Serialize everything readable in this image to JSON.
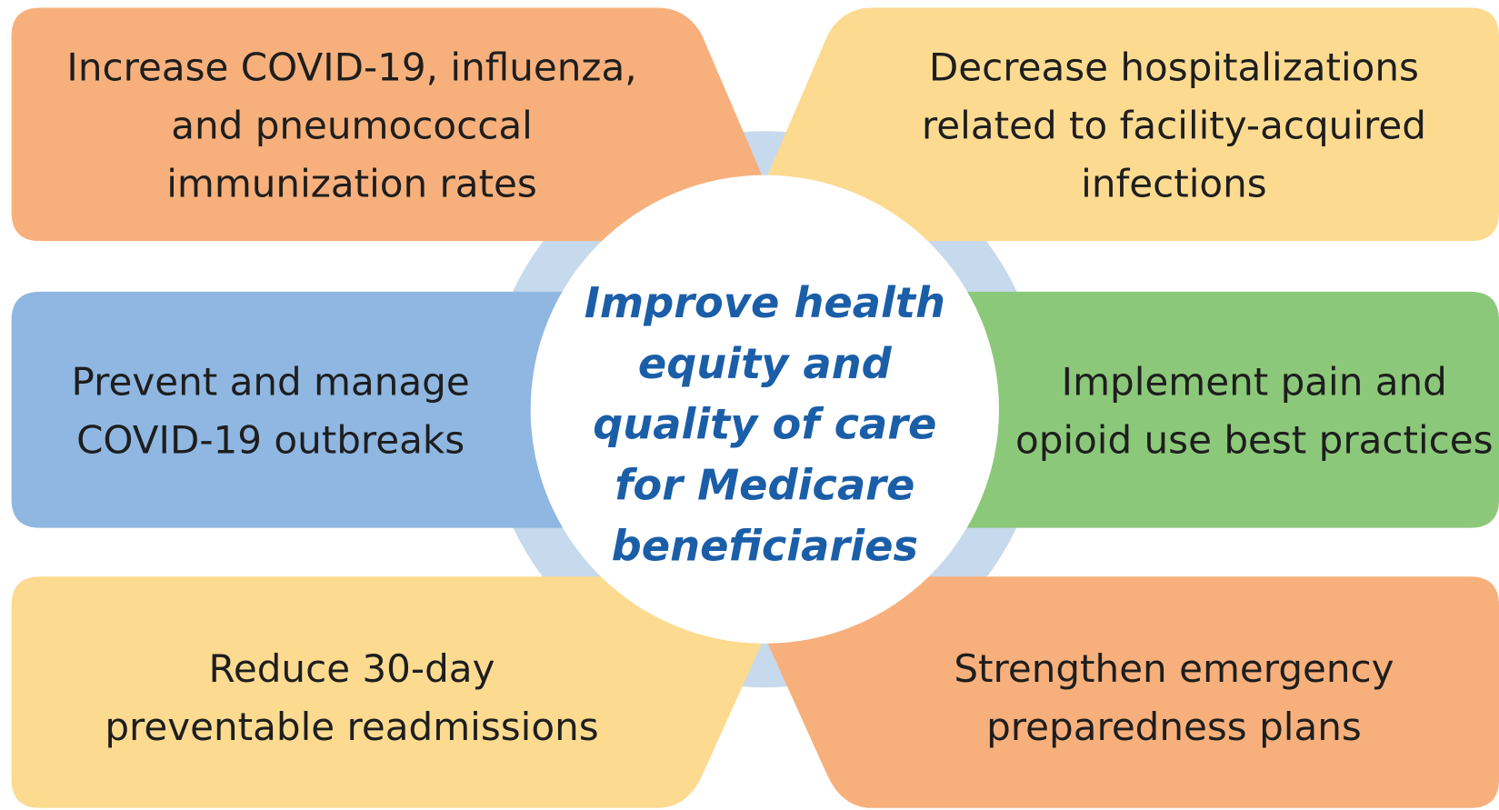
{
  "center": {
    "lines": [
      "Improve health",
      "equity and",
      "quality of care",
      "for Medicare",
      "beneficiaries"
    ]
  },
  "boxes": [
    {
      "lines": [
        "Increase COVID-19, influenza,",
        "and pneumococcal",
        "immunization rates"
      ]
    },
    {
      "lines": [
        "Decrease hospitalizations",
        "related to facility-acquired",
        "infections"
      ]
    },
    {
      "lines": [
        "Prevent and manage",
        "COVID-19 outbreaks"
      ]
    },
    {
      "lines": [
        "Implement pain and",
        "opioid use best practices"
      ]
    },
    {
      "lines": [
        "Reduce 30-day",
        "preventable readmissions"
      ]
    },
    {
      "lines": [
        "Strengthen emergency",
        "preparedness plans"
      ]
    }
  ]
}
